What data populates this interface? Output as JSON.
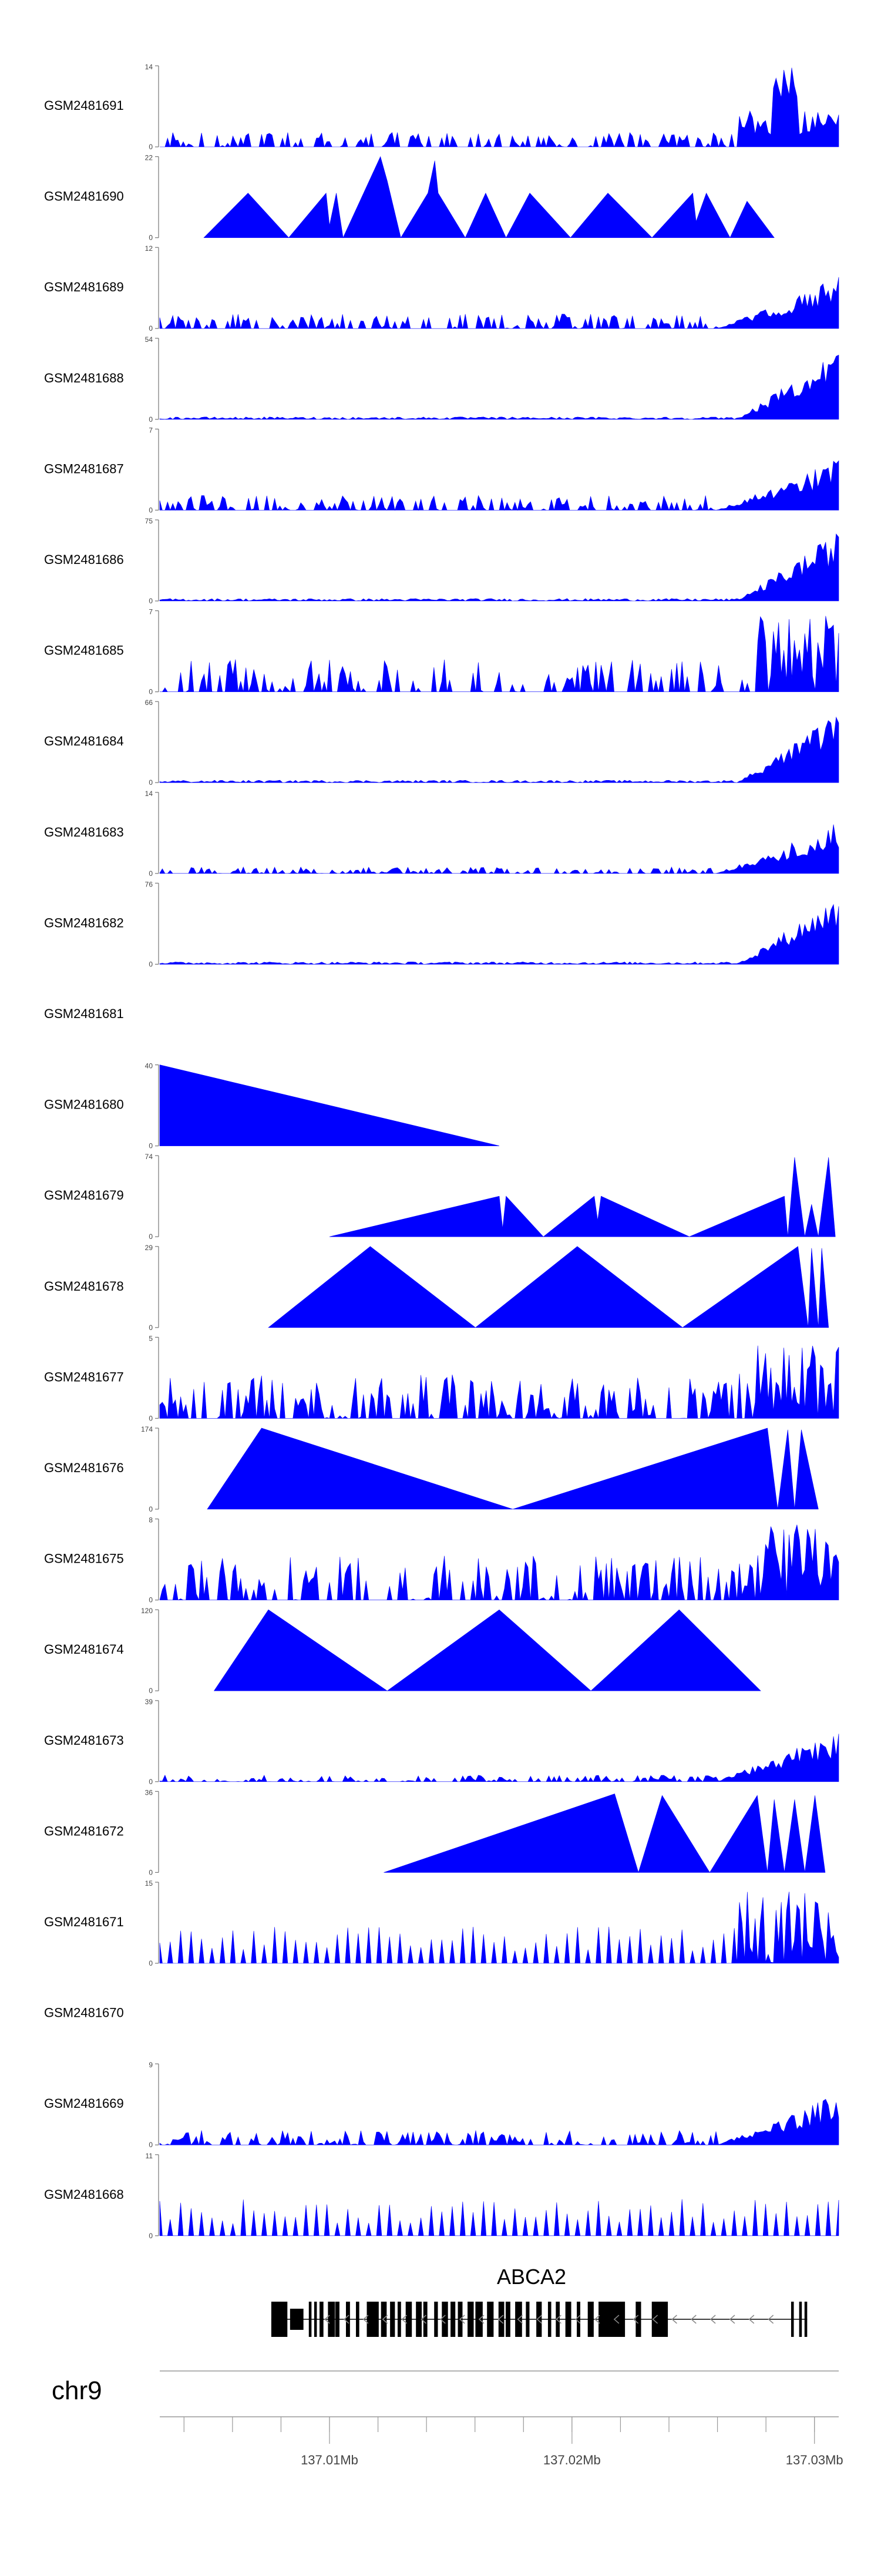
{
  "chart_data": {
    "type": "area",
    "fill_color": "#0000ff",
    "axis": {
      "chromosome": "chr9",
      "range_mb": [
        137.003,
        137.031
      ],
      "tick_labels": [
        {
          "value": 137.01,
          "label": "137.01Mb"
        },
        {
          "value": 137.02,
          "label": "137.02Mb"
        },
        {
          "value": 137.03,
          "label": "137.03Mb"
        }
      ]
    },
    "gene": {
      "name": "ABCA2",
      "strand": "minus",
      "start_mb": 137.0076,
      "end_mb": 137.0297
    },
    "tracks": [
      {
        "name": "GSM2481691",
        "ymax": 14,
        "ymin": 0,
        "pattern": "noise_peak_right"
      },
      {
        "name": "GSM2481690",
        "ymax": 22,
        "ymin": 0,
        "pattern": "triangles"
      },
      {
        "name": "GSM2481689",
        "ymax": 12,
        "ymin": 0,
        "pattern": "noise_rise_right"
      },
      {
        "name": "GSM2481688",
        "ymax": 54,
        "ymin": 0,
        "pattern": "flat_rise_right"
      },
      {
        "name": "GSM2481687",
        "ymax": 7,
        "ymin": 0,
        "pattern": "noise_rise_right"
      },
      {
        "name": "GSM2481686",
        "ymax": 75,
        "ymin": 0,
        "pattern": "flat_rise_right"
      },
      {
        "name": "GSM2481685",
        "ymax": 7,
        "ymin": 0,
        "pattern": "spiky"
      },
      {
        "name": "GSM2481684",
        "ymax": 66,
        "ymin": 0,
        "pattern": "flat_rise_right"
      },
      {
        "name": "GSM2481683",
        "ymax": 14,
        "ymin": 0,
        "pattern": "low_rise_right"
      },
      {
        "name": "GSM2481682",
        "ymax": 76,
        "ymin": 0,
        "pattern": "flat_rise_right"
      },
      {
        "name": "GSM2481681",
        "ymax": null,
        "ymin": null,
        "pattern": "empty"
      },
      {
        "name": "GSM2481680",
        "ymax": 40,
        "ymin": 0,
        "pattern": "single_wedge"
      },
      {
        "name": "GSM2481679",
        "ymax": 74,
        "ymin": 0,
        "pattern": "wedges_right"
      },
      {
        "name": "GSM2481678",
        "ymax": 29,
        "ymin": 0,
        "pattern": "three_triangles"
      },
      {
        "name": "GSM2481677",
        "ymax": 5,
        "ymin": 0,
        "pattern": "spiky_dense"
      },
      {
        "name": "GSM2481676",
        "ymax": 174,
        "ymin": 0,
        "pattern": "two_big_triangles"
      },
      {
        "name": "GSM2481675",
        "ymax": 8,
        "ymin": 0,
        "pattern": "spiky_dense"
      },
      {
        "name": "GSM2481674",
        "ymax": 120,
        "ymin": 0,
        "pattern": "three_big_triangles"
      },
      {
        "name": "GSM2481673",
        "ymax": 39,
        "ymin": 0,
        "pattern": "low_rise_right"
      },
      {
        "name": "GSM2481672",
        "ymax": 36,
        "ymin": 0,
        "pattern": "ramp_right"
      },
      {
        "name": "GSM2481671",
        "ymax": 15,
        "ymin": 0,
        "pattern": "small_triangles_rise"
      },
      {
        "name": "GSM2481670",
        "ymax": null,
        "ymin": null,
        "pattern": "empty"
      },
      {
        "name": "GSM2481669",
        "ymax": 9,
        "ymin": 0,
        "pattern": "noise_rise_right"
      },
      {
        "name": "GSM2481668",
        "ymax": 11,
        "ymin": 0,
        "pattern": "small_triangles"
      }
    ]
  }
}
